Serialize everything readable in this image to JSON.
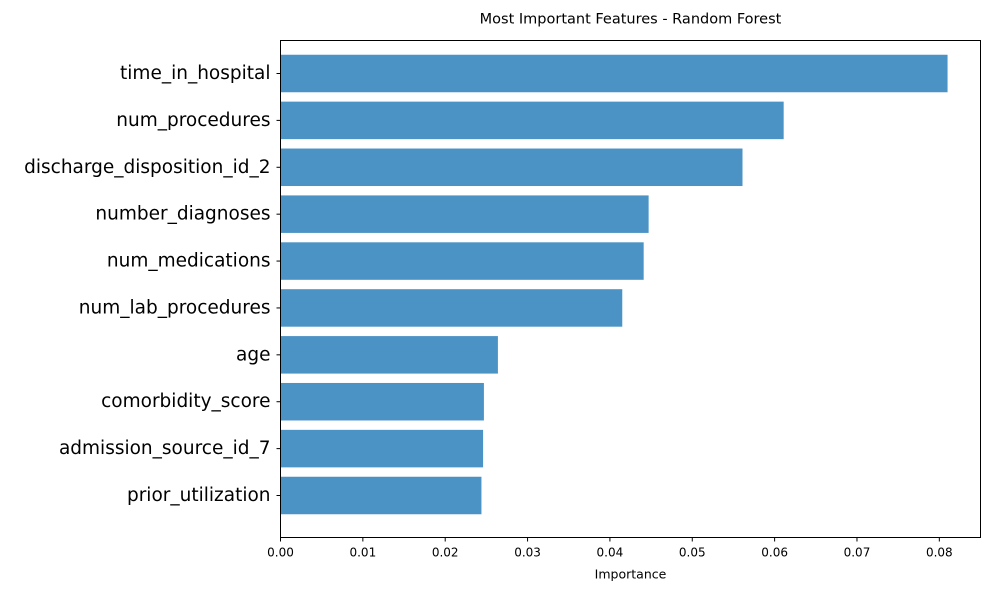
{
  "chart_data": {
    "type": "bar",
    "orientation": "horizontal",
    "title": "Most Important Features - Random Forest",
    "xlabel": "Importance",
    "ylabel": "",
    "categories": [
      "time_in_hospital",
      "num_procedures",
      "discharge_disposition_id_2",
      "number_diagnoses",
      "num_medications",
      "num_lab_procedures",
      "age",
      "comorbidity_score",
      "admission_source_id_7",
      "prior_utilization"
    ],
    "values": [
      0.081,
      0.0611,
      0.0561,
      0.0447,
      0.0441,
      0.0415,
      0.0264,
      0.0247,
      0.0246,
      0.0244
    ],
    "xlim": [
      0,
      0.085
    ],
    "xticks": [
      0,
      0.01,
      0.02,
      0.03,
      0.04,
      0.05,
      0.06,
      0.07,
      0.08
    ],
    "xtick_labels": [
      "0.00",
      "0.01",
      "0.02",
      "0.03",
      "0.04",
      "0.05",
      "0.06",
      "0.07",
      "0.08"
    ],
    "bar_color": "#4c93c5",
    "grid": false,
    "legend": "none"
  }
}
